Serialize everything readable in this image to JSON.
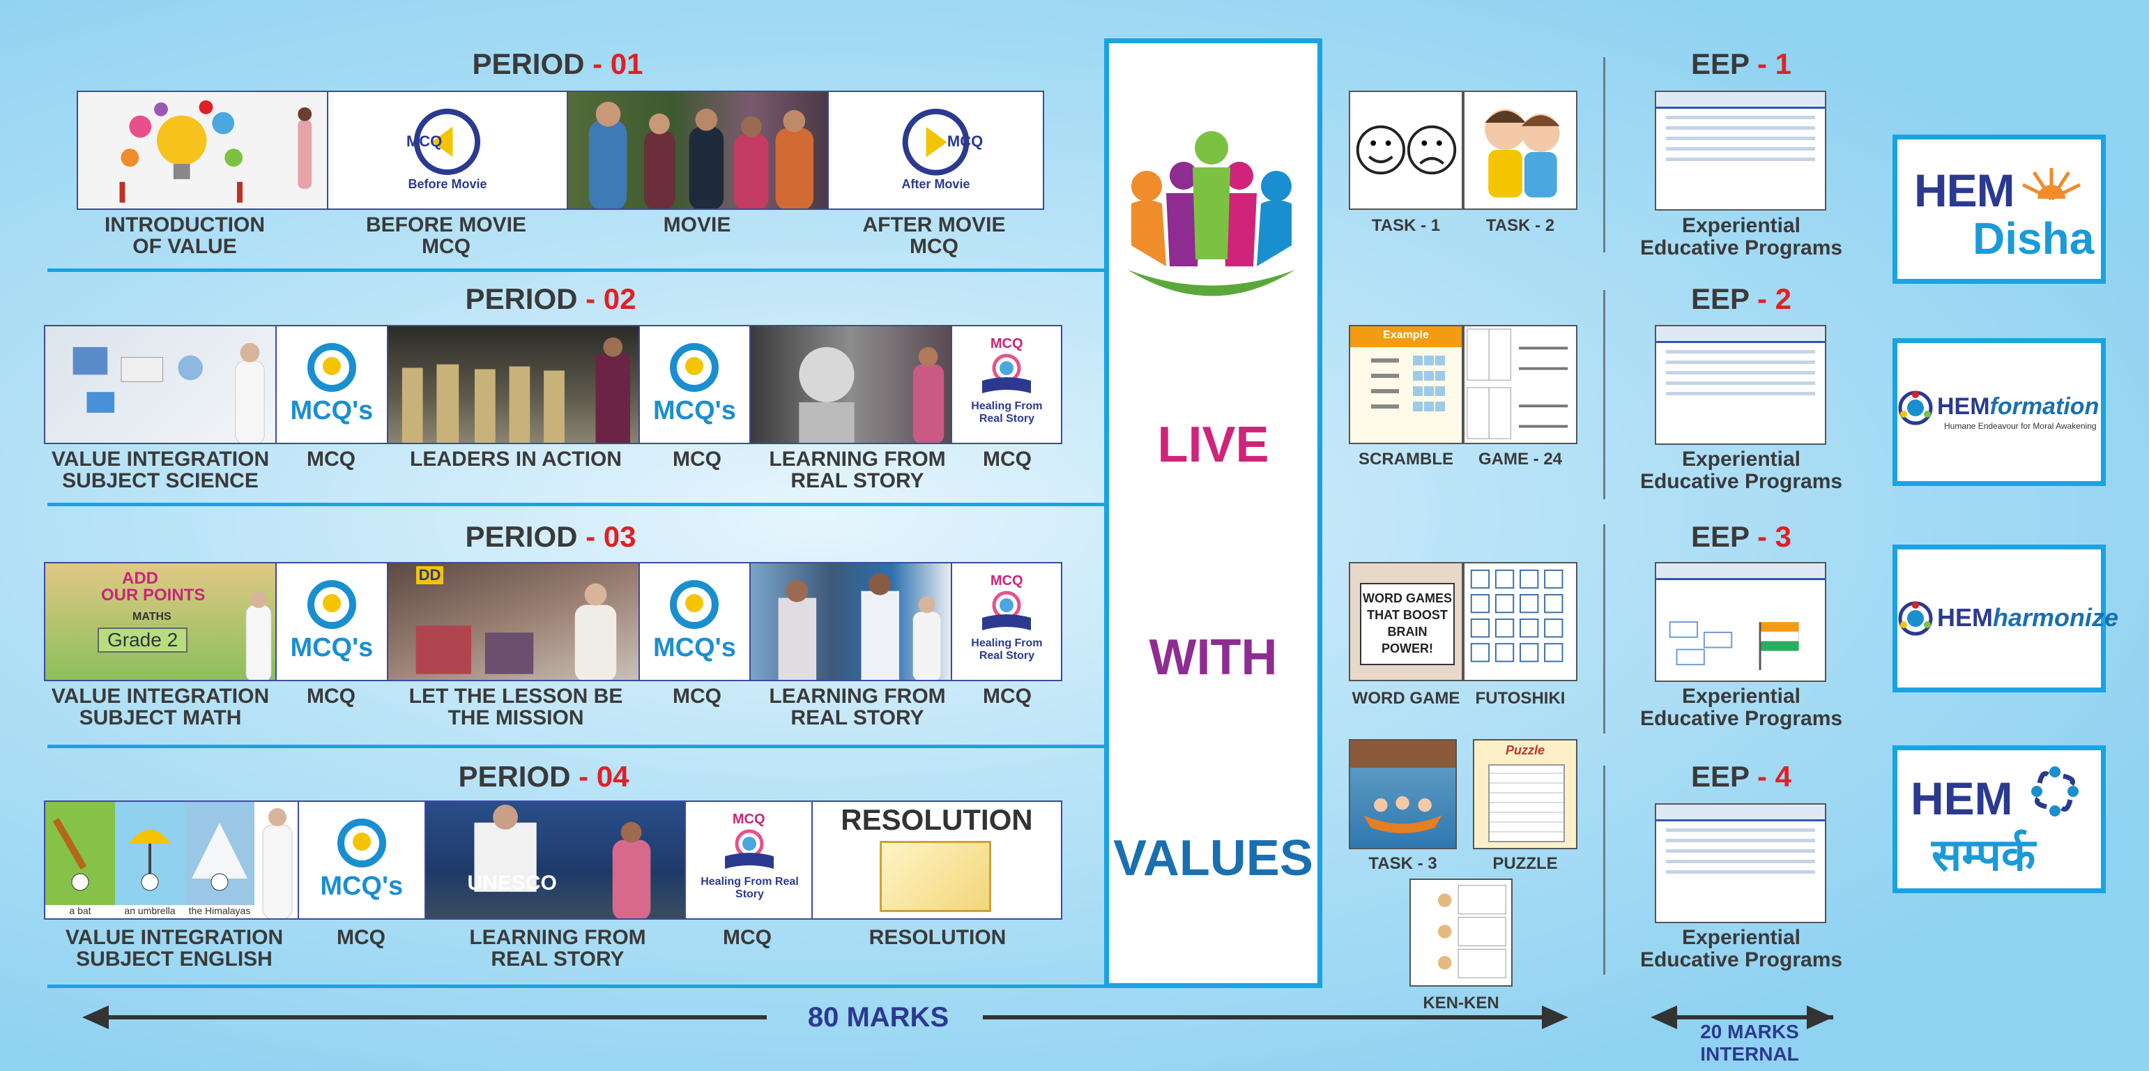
{
  "periods": [
    {
      "title": "PERIOD ",
      "num": "- 01",
      "tiles": [
        {
          "label": "INTRODUCTION OF VALUE"
        },
        {
          "label": "BEFORE MOVIE MCQ",
          "tag": "MCQ",
          "sub": "Before Movie"
        },
        {
          "label": "MOVIE"
        },
        {
          "label": "AFTER MOVIE MCQ",
          "tag": "MCQ",
          "sub": "After Movie"
        }
      ]
    },
    {
      "title": "PERIOD ",
      "num": "- 02",
      "tiles": [
        {
          "label": "VALUE INTEGRATION SUBJECT SCIENCE"
        },
        {
          "label": "MCQ",
          "tag": "MCQ's"
        },
        {
          "label": "LEADERS IN ACTION"
        },
        {
          "label": "MCQ",
          "tag": "MCQ's"
        },
        {
          "label": "LEARNING FROM REAL STORY"
        },
        {
          "label": "MCQ",
          "tag": "MCQ",
          "sub": "Healing From Real Story"
        }
      ]
    },
    {
      "title": "PERIOD ",
      "num": "- 03",
      "tiles": [
        {
          "label": "VALUE INTEGRATION SUBJECT MATH",
          "art": [
            "ADD",
            "OUR POINTS",
            "MATHS",
            "Grade 2"
          ]
        },
        {
          "label": "MCQ",
          "tag": "MCQ's"
        },
        {
          "label": "LET THE LESSON BE THE MISSION",
          "art": [
            "DD"
          ]
        },
        {
          "label": "MCQ",
          "tag": "MCQ's"
        },
        {
          "label": "LEARNING FROM REAL STORY"
        },
        {
          "label": "MCQ",
          "tag": "MCQ",
          "sub": "Healing From Real Story"
        }
      ]
    },
    {
      "title": "PERIOD ",
      "num": "- 04",
      "tiles": [
        {
          "label": "VALUE INTEGRATION SUBJECT ENGLISH",
          "art": [
            "a bat",
            "an umbrella",
            "the Himalayas"
          ]
        },
        {
          "label": "MCQ",
          "tag": "MCQ's"
        },
        {
          "label": "LEARNING FROM REAL STORY",
          "art": [
            "UNESCO"
          ]
        },
        {
          "label": "MCQ",
          "tag": "MCQ",
          "sub": "Healing From Real Story"
        },
        {
          "label": "RESOLUTION",
          "tag": "RESOLUTION"
        }
      ]
    }
  ],
  "center": {
    "w1": "LIVE",
    "w2": "WITH",
    "w3": "VALUES",
    "colors": {
      "live": "#d0237a",
      "with": "#8e2c91",
      "values": "#1a6fb0"
    }
  },
  "activities": [
    {
      "label": "TASK - 1"
    },
    {
      "label": "TASK - 2"
    },
    {
      "label": "SCRAMBLE",
      "art": [
        "Example"
      ]
    },
    {
      "label": "GAME - 24"
    },
    {
      "label": "WORD GAME",
      "art": [
        "WORD GAMES THAT BOOST BRAIN POWER!"
      ]
    },
    {
      "label": "FUTOSHIKI"
    },
    {
      "label": "TASK - 3"
    },
    {
      "label": "PUZZLE",
      "art": [
        "Puzzle"
      ]
    },
    {
      "label": "KEN-KEN"
    }
  ],
  "eep": [
    {
      "title": "EEP ",
      "num": "- 1",
      "label": "Experiential Educative Programs"
    },
    {
      "title": "EEP ",
      "num": "- 2",
      "label": "Experiential Educative Programs"
    },
    {
      "title": "EEP ",
      "num": "- 3",
      "label": "Experiential Educative Programs"
    },
    {
      "title": "EEP ",
      "num": "- 4",
      "label": "Experiential Educative Programs"
    }
  ],
  "logos": [
    {
      "a": "HEM",
      "b": "Disha"
    },
    {
      "a": "HEM",
      "b": "formation",
      "sub": "Humane Endeavour for Moral Awakening"
    },
    {
      "a": "HEM",
      "b": "harmonize"
    },
    {
      "a": "HEM",
      "b": "सम्पर्क"
    }
  ],
  "footer": {
    "left": "80 MARKS",
    "right1": "20 MARKS",
    "right2": "INTERNAL"
  },
  "colors": {
    "accent_blue": "#1aa3e2",
    "red": "#e21f26",
    "navy": "#2b3a90"
  }
}
